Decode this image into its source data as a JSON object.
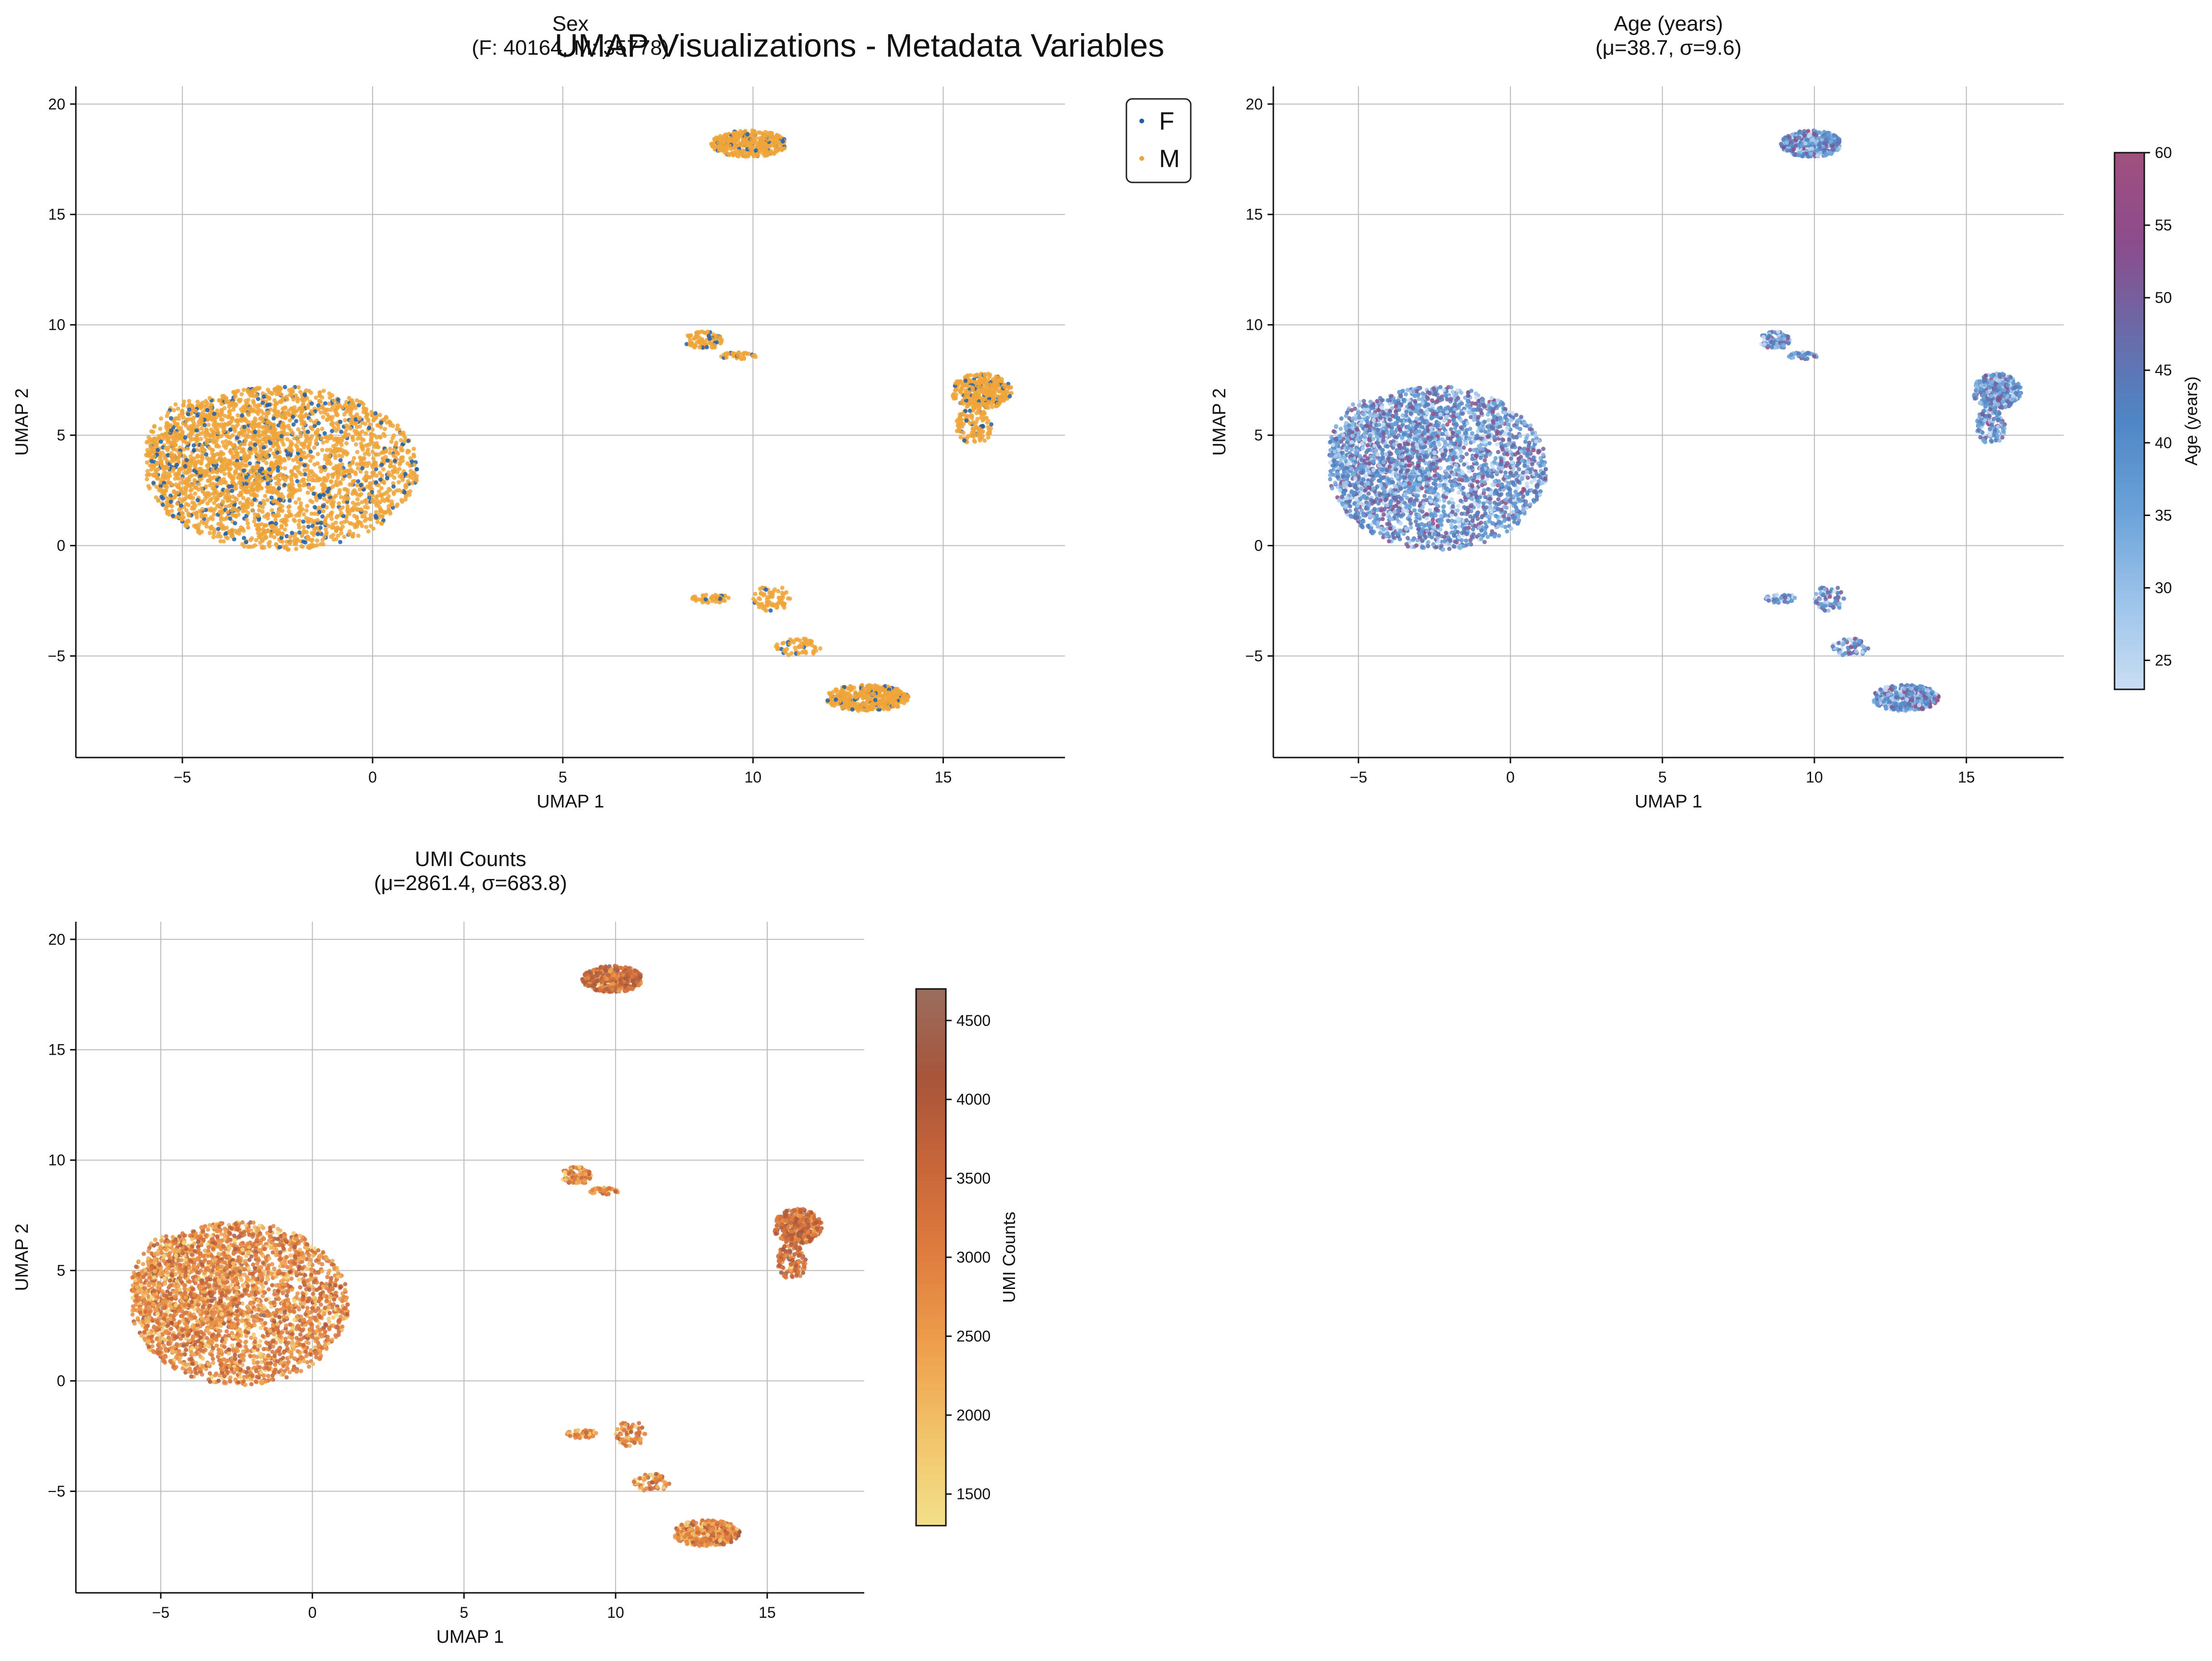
{
  "suptitle": "UMAP Visualizations - Metadata Variables",
  "colors": {
    "female": "#1f5fa8",
    "male": "#f0a43a",
    "grid": "#bbbbbb",
    "axis": "#111111",
    "age_cmap": [
      "#c9def4",
      "#9cc3ea",
      "#6aa2d8",
      "#4f86c6",
      "#6a6aa8",
      "#8c4c8c",
      "#a0507e"
    ],
    "umi_cmap": [
      "#f3df8a",
      "#f2c46a",
      "#ee9f4c",
      "#e07d3f",
      "#c9663a",
      "#a8553a",
      "#9a6d5e"
    ]
  },
  "chart_data": [
    {
      "type": "scatter",
      "title": "Sex",
      "subtitle": "(F: 40164, M: 35778)",
      "xlabel": "UMAP 1",
      "ylabel": "UMAP 2",
      "xlim": [
        -7.8,
        18.2
      ],
      "ylim": [
        -9.6,
        20.8
      ],
      "xticks": [
        -5,
        0,
        5,
        10,
        15
      ],
      "yticks": [
        -5,
        0,
        5,
        10,
        15,
        20
      ],
      "xtick_labels": [
        "−5",
        "0",
        "5",
        "10",
        "15"
      ],
      "ytick_labels": [
        "−5",
        "0",
        "5",
        "10",
        "15",
        "20"
      ],
      "grid": true,
      "legend": {
        "placement": "upper-right",
        "entries": [
          "F",
          "M"
        ]
      },
      "clusters": [
        {
          "cx": -2.5,
          "cy": 3.4,
          "rx": 3.8,
          "ry": 4.1
        },
        {
          "cx": 9.8,
          "cy": 18.1,
          "rx": 1.2,
          "ry": 1.1
        },
        {
          "cx": 16.0,
          "cy": 6.6,
          "rx": 1.0,
          "ry": 1.3
        },
        {
          "cx": 13.0,
          "cy": -6.8,
          "rx": 1.4,
          "ry": 1.2
        },
        {
          "cx": 9.2,
          "cy": 9.2,
          "rx": 0.9,
          "ry": 0.6
        },
        {
          "cx": 9.8,
          "cy": -3.1,
          "rx": 1.4,
          "ry": 1.1
        }
      ]
    },
    {
      "type": "scatter",
      "title": "Age (years)",
      "subtitle": "(μ=38.7, σ=9.6)",
      "xlabel": "UMAP 1",
      "ylabel": "UMAP 2",
      "xlim": [
        -7.8,
        18.2
      ],
      "ylim": [
        -9.6,
        20.8
      ],
      "xticks": [
        -5,
        0,
        5,
        10,
        15
      ],
      "yticks": [
        -5,
        0,
        5,
        10,
        15,
        20
      ],
      "xtick_labels": [
        "−5",
        "0",
        "5",
        "10",
        "15"
      ],
      "ytick_labels": [
        "−5",
        "0",
        "5",
        "10",
        "15",
        "20"
      ],
      "grid": true,
      "colorbar": {
        "label": "Age (years)",
        "range": [
          23,
          60
        ],
        "ticks": [
          25,
          30,
          35,
          40,
          45,
          50,
          55,
          60
        ],
        "tick_labels": [
          "25",
          "30",
          "35",
          "40",
          "45",
          "50",
          "55",
          "60"
        ]
      }
    },
    {
      "type": "scatter",
      "title": "UMI Counts",
      "subtitle": "(μ=2861.4, σ=683.8)",
      "xlabel": "UMAP 1",
      "ylabel": "UMAP 2",
      "xlim": [
        -7.8,
        18.2
      ],
      "ylim": [
        -9.6,
        20.8
      ],
      "xticks": [
        -5,
        0,
        5,
        10,
        15
      ],
      "yticks": [
        -5,
        0,
        5,
        10,
        15,
        20
      ],
      "xtick_labels": [
        "−5",
        "0",
        "5",
        "10",
        "15"
      ],
      "ytick_labels": [
        "−5",
        "0",
        "5",
        "10",
        "15",
        "20"
      ],
      "grid": true,
      "colorbar": {
        "label": "UMI Counts",
        "range": [
          1300,
          4700
        ],
        "ticks": [
          1500,
          2000,
          2500,
          3000,
          3500,
          4000,
          4500
        ],
        "tick_labels": [
          "1500",
          "2000",
          "2500",
          "3000",
          "3500",
          "4000",
          "4500"
        ]
      }
    }
  ]
}
